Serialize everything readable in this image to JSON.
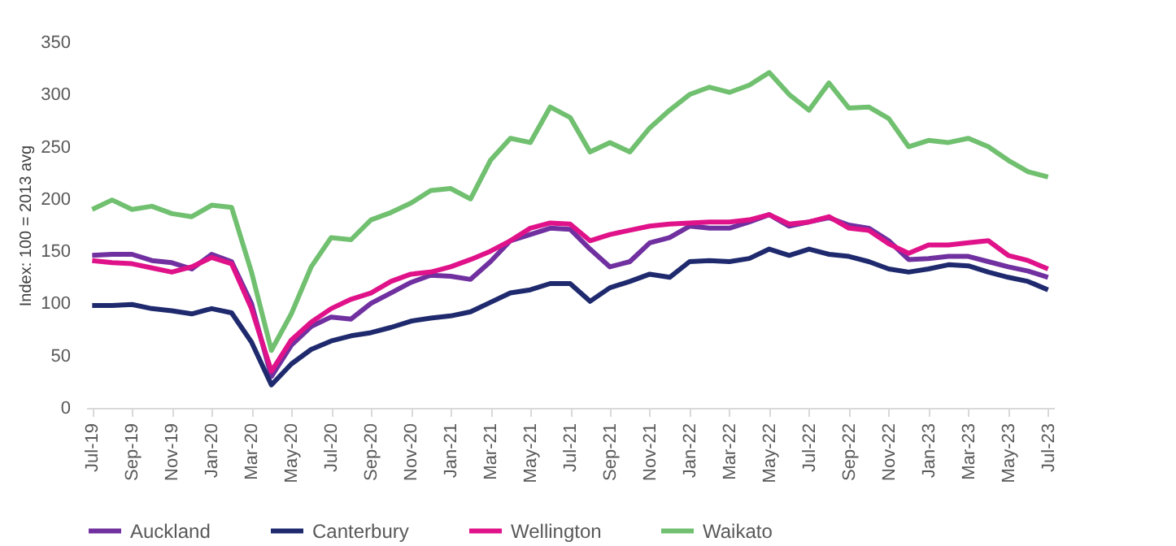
{
  "chart_data": {
    "type": "line",
    "ylabel": "Index: 100 = 2013 avg",
    "categories": [
      "Jul-19",
      null,
      "Sep-19",
      null,
      "Nov-19",
      null,
      "Jan-20",
      null,
      "Mar-20",
      null,
      "May-20",
      null,
      "Jul-20",
      null,
      "Sep-20",
      null,
      "Nov-20",
      null,
      "Jan-21",
      null,
      "Mar-21",
      null,
      "May-21",
      null,
      "Jul-21",
      null,
      "Sep-21",
      null,
      "Nov-21",
      null,
      "Jan-22",
      null,
      "Mar-22",
      null,
      "May-22",
      null,
      "Jul-22",
      null,
      "Sep-22",
      null,
      "Nov-22",
      null,
      "Jan-23",
      null,
      "Mar-23",
      null,
      "May-23",
      null,
      "Jul-23"
    ],
    "series": [
      {
        "name": "Auckland",
        "color": "#7030a0",
        "values": [
          146,
          147,
          147,
          141,
          139,
          133,
          147,
          140,
          100,
          30,
          60,
          78,
          87,
          85,
          100,
          110,
          120,
          127,
          126,
          123,
          140,
          160,
          166,
          172,
          171,
          152,
          135,
          140,
          158,
          163,
          174,
          172,
          172,
          178,
          185,
          174,
          178,
          182,
          175,
          172,
          160,
          142,
          143,
          145,
          145,
          140,
          135,
          131,
          125
        ]
      },
      {
        "name": "Canterbury",
        "color": "#1f2a6e",
        "values": [
          98,
          98,
          99,
          95,
          93,
          90,
          95,
          91,
          63,
          22,
          42,
          56,
          64,
          69,
          72,
          77,
          83,
          86,
          88,
          92,
          101,
          110,
          113,
          119,
          119,
          102,
          115,
          121,
          128,
          125,
          140,
          141,
          140,
          143,
          152,
          146,
          152,
          147,
          145,
          140,
          133,
          130,
          133,
          137,
          136,
          130,
          125,
          121,
          113
        ]
      },
      {
        "name": "Wellington",
        "color": "#e0128a",
        "values": [
          141,
          139,
          138,
          134,
          130,
          135,
          144,
          138,
          95,
          35,
          65,
          82,
          95,
          104,
          110,
          121,
          128,
          130,
          135,
          142,
          150,
          160,
          172,
          177,
          176,
          160,
          166,
          170,
          174,
          176,
          177,
          178,
          178,
          180,
          185,
          176,
          178,
          183,
          172,
          170,
          157,
          148,
          156,
          156,
          158,
          160,
          146,
          141,
          133
        ]
      },
      {
        "name": "Waikato",
        "color": "#70c070",
        "values": [
          190,
          199,
          190,
          193,
          186,
          183,
          194,
          192,
          130,
          55,
          90,
          135,
          163,
          161,
          180,
          187,
          196,
          208,
          210,
          200,
          237,
          258,
          254,
          288,
          278,
          245,
          254,
          245,
          268,
          285,
          300,
          307,
          302,
          309,
          321,
          300,
          285,
          311,
          287,
          288,
          277,
          250,
          256,
          254,
          258,
          250,
          237,
          226,
          221
        ]
      }
    ],
    "ylim": [
      0,
      350
    ],
    "yticks": [
      0,
      50,
      100,
      150,
      200,
      250,
      300,
      350
    ],
    "legend": "bottom"
  }
}
